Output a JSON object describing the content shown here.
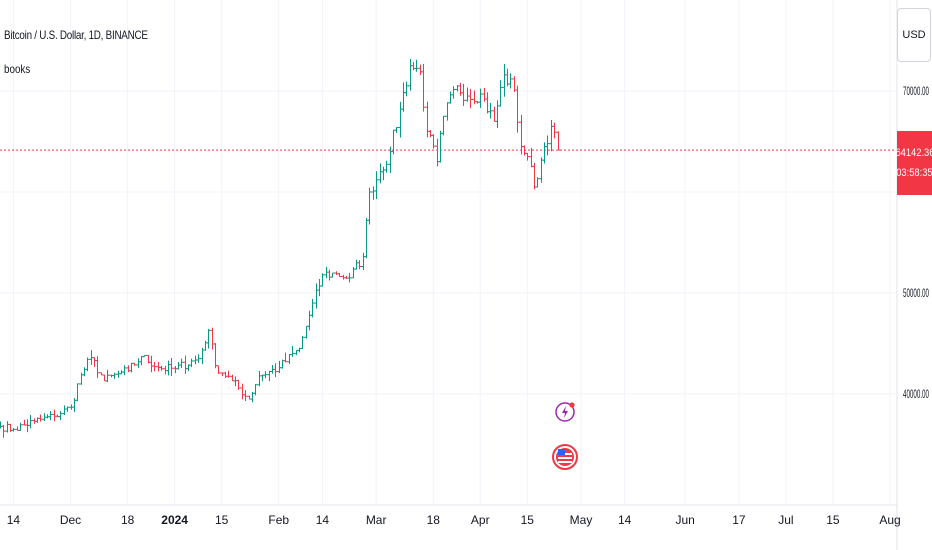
{
  "header": {
    "title": "Bitcoin / U.S. Dollar, 1D, BINANCE",
    "indicator": "books"
  },
  "currency_button": "USD",
  "last_price": {
    "value": "64142.36",
    "countdown": "03:58:35",
    "color": "#f23645"
  },
  "colors": {
    "up": "#089981",
    "down": "#f23645",
    "grid": "#f0f3fa"
  },
  "icons": [
    "lightning-icon",
    "us-flag-icon"
  ],
  "chart_data": {
    "type": "ohlc",
    "symbol": "BTCUSD",
    "y_ticks": [
      "40000.00",
      "50000.00",
      "70000.00"
    ],
    "y_tick_values": [
      40000,
      50000,
      70000
    ],
    "ylim": [
      34500,
      80000
    ],
    "x_ticks": [
      {
        "label": "14",
        "date": "2023-11-14",
        "bold": false
      },
      {
        "label": "Dec",
        "date": "2023-12-01",
        "bold": false
      },
      {
        "label": "18",
        "date": "2023-12-18",
        "bold": false
      },
      {
        "label": "2024",
        "date": "2024-01-01",
        "bold": true
      },
      {
        "label": "15",
        "date": "2024-01-15",
        "bold": false
      },
      {
        "label": "Feb",
        "date": "2024-02-01",
        "bold": false
      },
      {
        "label": "14",
        "date": "2024-02-14",
        "bold": false
      },
      {
        "label": "Mar",
        "date": "2024-03-01",
        "bold": false
      },
      {
        "label": "18",
        "date": "2024-03-18",
        "bold": false
      },
      {
        "label": "Apr",
        "date": "2024-04-01",
        "bold": false
      },
      {
        "label": "15",
        "date": "2024-04-15",
        "bold": false
      },
      {
        "label": "May",
        "date": "2024-05-01",
        "bold": false
      },
      {
        "label": "14",
        "date": "2024-05-14",
        "bold": false
      },
      {
        "label": "Jun",
        "date": "2024-06-01",
        "bold": false
      },
      {
        "label": "17",
        "date": "2024-06-17",
        "bold": false
      },
      {
        "label": "Jul",
        "date": "2024-07-01",
        "bold": false
      },
      {
        "label": "15",
        "date": "2024-07-15",
        "bold": false
      },
      {
        "label": "Aug",
        "date": "2024-08-01",
        "bold": false
      }
    ],
    "x_range": [
      "2023-11-10",
      "2024-08-01"
    ],
    "last_price": 64142.36,
    "anchors": [
      [
        "2023-11-10",
        36800
      ],
      [
        "2023-11-14",
        36500
      ],
      [
        "2023-11-20",
        37300
      ],
      [
        "2023-11-26",
        37800
      ],
      [
        "2023-12-01",
        38700
      ],
      [
        "2023-12-04",
        41900
      ],
      [
        "2023-12-07",
        43600
      ],
      [
        "2023-12-11",
        41300
      ],
      [
        "2023-12-15",
        42000
      ],
      [
        "2023-12-18",
        42300
      ],
      [
        "2023-12-22",
        43700
      ],
      [
        "2023-12-28",
        42500
      ],
      [
        "2024-01-01",
        42500
      ],
      [
        "2024-01-08",
        43500
      ],
      [
        "2024-01-11",
        46300
      ],
      [
        "2024-01-13",
        42800
      ],
      [
        "2024-01-18",
        41300
      ],
      [
        "2024-01-23",
        39500
      ],
      [
        "2024-01-26",
        41800
      ],
      [
        "2024-02-01",
        42600
      ],
      [
        "2024-02-07",
        44500
      ],
      [
        "2024-02-10",
        47800
      ],
      [
        "2024-02-14",
        51800
      ],
      [
        "2024-02-18",
        51900
      ],
      [
        "2024-02-22",
        51500
      ],
      [
        "2024-02-26",
        53600
      ],
      [
        "2024-02-28",
        60000
      ],
      [
        "2024-03-02",
        62000
      ],
      [
        "2024-03-05",
        64000
      ],
      [
        "2024-03-08",
        68200
      ],
      [
        "2024-03-11",
        72500
      ],
      [
        "2024-03-14",
        71900
      ],
      [
        "2024-03-16",
        66000
      ],
      [
        "2024-03-19",
        63000
      ],
      [
        "2024-03-21",
        67500
      ],
      [
        "2024-03-25",
        70500
      ],
      [
        "2024-03-28",
        69500
      ],
      [
        "2024-04-01",
        69700
      ],
      [
        "2024-04-05",
        67000
      ],
      [
        "2024-04-08",
        71600
      ],
      [
        "2024-04-11",
        70100
      ],
      [
        "2024-04-13",
        64500
      ],
      [
        "2024-04-15",
        63500
      ],
      [
        "2024-04-17",
        60500
      ],
      [
        "2024-04-20",
        64500
      ],
      [
        "2024-04-22",
        66500
      ],
      [
        "2024-04-24",
        64142.36
      ]
    ]
  }
}
